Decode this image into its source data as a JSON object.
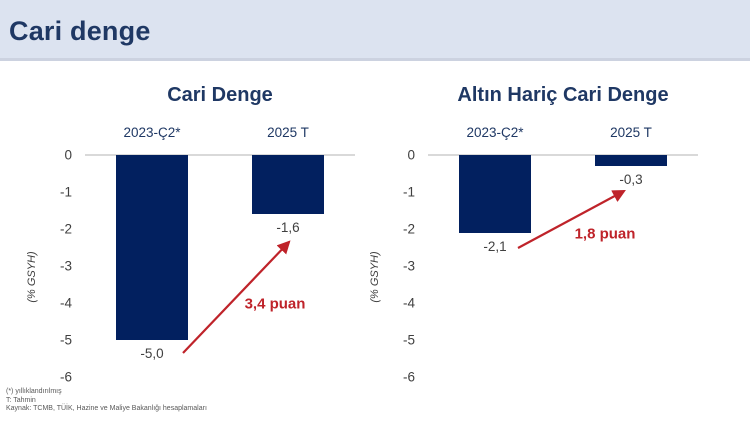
{
  "header": {
    "title": "Cari denge"
  },
  "colors": {
    "header-bg": "#dce3f0",
    "title-navy": "#1f3864",
    "bar": "#02205f",
    "annotation-red": "#bf232a",
    "grid": "#d9d9d9",
    "label-gray": "#404040",
    "footer-gray": "#595959"
  },
  "chart_data": [
    {
      "type": "bar",
      "title": "Cari Denge",
      "categories": [
        "2023-Ç2*",
        "2025 T"
      ],
      "values": [
        -5.0,
        -1.6
      ],
      "value_labels": [
        "-5,0",
        "-1,6"
      ],
      "annotation": "3,4 puan",
      "ylabel": "(% GSYH)",
      "yticks": [
        0,
        -1,
        -2,
        -3,
        -4,
        -5,
        -6
      ],
      "ylim": [
        -6,
        0
      ],
      "grid": false,
      "legend": null
    },
    {
      "type": "bar",
      "title": "Altın Hariç Cari Denge",
      "categories": [
        "2023-Ç2*",
        "2025 T"
      ],
      "values": [
        -2.1,
        -0.3
      ],
      "value_labels": [
        "-2,1",
        "-0,3"
      ],
      "annotation": "1,8 puan",
      "ylabel": "(% GSYH)",
      "yticks": [
        0,
        -1,
        -2,
        -3,
        -4,
        -5,
        -6
      ],
      "ylim": [
        -6,
        0
      ],
      "grid": false,
      "legend": null
    }
  ],
  "footer": {
    "note1": "(*) yıllıklandırılmış",
    "note2": "T: Tahmin",
    "source": "Kaynak: TCMB, TÜİK, Hazine ve Maliye Bakanlığı hesaplamaları"
  }
}
